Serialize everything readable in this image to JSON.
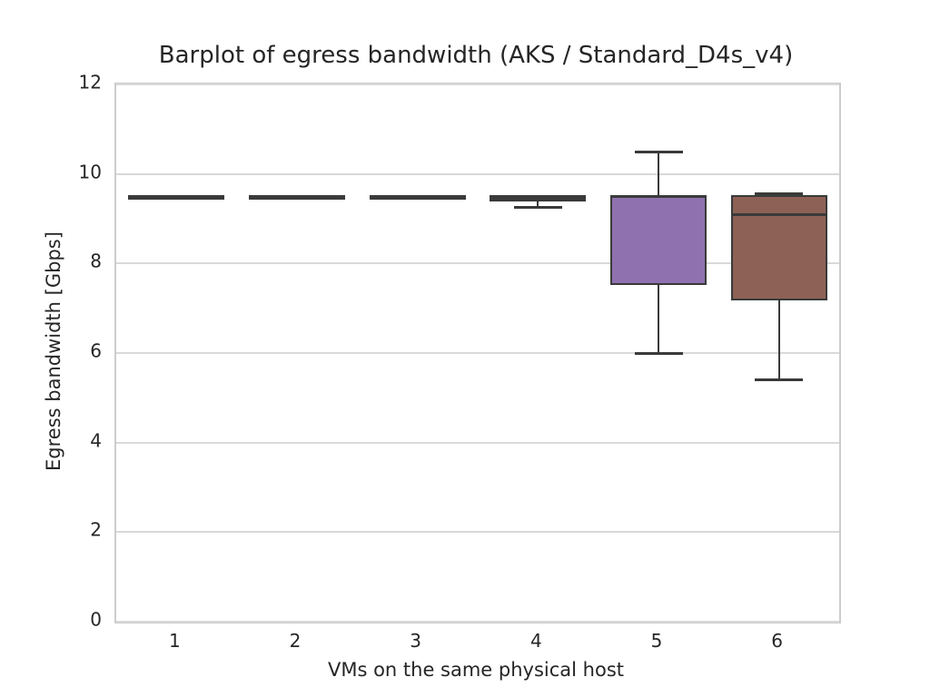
{
  "chart_data": {
    "type": "boxplot",
    "title": "Barplot of egress bandwidth (AKS / Standard_D4s_v4)",
    "xlabel": "VMs on the same physical host",
    "ylabel": "Egress bandwidth [Gbps]",
    "categories": [
      "1",
      "2",
      "3",
      "4",
      "5",
      "6"
    ],
    "ylim": [
      0,
      12
    ],
    "yticks": [
      0,
      2,
      4,
      6,
      8,
      10,
      12
    ],
    "grid": "horizontal-major",
    "legend_position": "none",
    "series": [
      {
        "category": "1",
        "whisker_low": 9.5,
        "q1": 9.5,
        "median": 9.5,
        "q3": 9.5,
        "whisker_high": 9.5,
        "fill": "#4c72b0"
      },
      {
        "category": "2",
        "whisker_low": 9.5,
        "q1": 9.5,
        "median": 9.5,
        "q3": 9.5,
        "whisker_high": 9.5,
        "fill": "#dd8452"
      },
      {
        "category": "3",
        "whisker_low": 9.5,
        "q1": 9.5,
        "median": 9.5,
        "q3": 9.5,
        "whisker_high": 9.5,
        "fill": "#55a868"
      },
      {
        "category": "4",
        "whisker_low": 9.25,
        "q1": 9.4,
        "median": 9.45,
        "q3": 9.5,
        "whisker_high": 9.5,
        "fill": "#c44e52"
      },
      {
        "category": "5",
        "whisker_low": 6.0,
        "q1": 7.55,
        "median": 9.5,
        "q3": 9.5,
        "whisker_high": 10.5,
        "fill": "#8f71b0"
      },
      {
        "category": "6",
        "whisker_low": 5.4,
        "q1": 7.2,
        "median": 9.1,
        "q3": 9.5,
        "whisker_high": 9.55,
        "fill": "#8d6156"
      }
    ],
    "style": {
      "background": "#ffffff",
      "text_color": "#262626",
      "box_line_color": "#3a3a3a",
      "gridline_color": "#d9d9d9",
      "spine_color": "#cccccc"
    }
  }
}
